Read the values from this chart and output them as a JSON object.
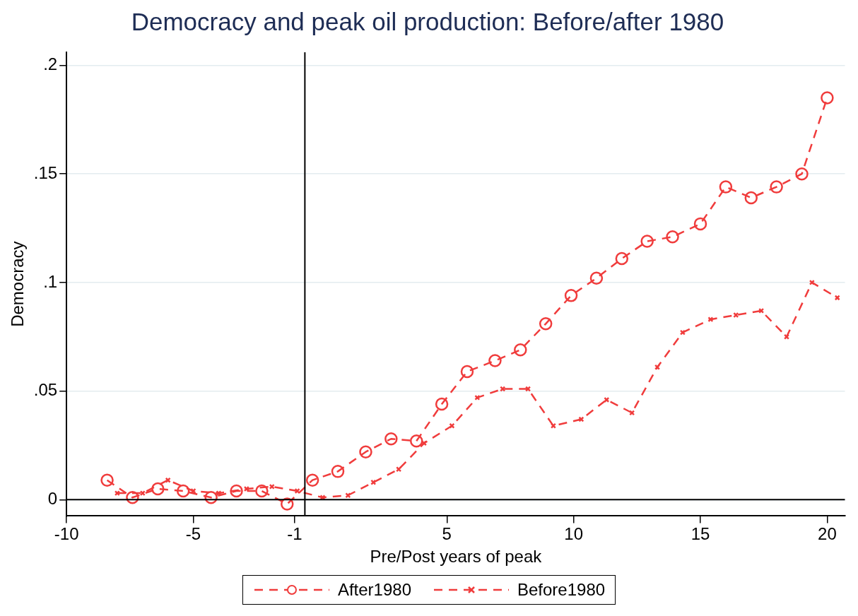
{
  "chart_data": {
    "type": "line",
    "title": "Democracy and peak oil production: Before/after 1980",
    "xlabel": "Pre/Post years of peak",
    "ylabel": "Democracy",
    "xlim": [
      -10,
      20.7
    ],
    "xticks": [
      -10,
      -5,
      -1,
      5,
      10,
      15,
      20
    ],
    "ylim": [
      -0.0075,
      0.206
    ],
    "yticks": [
      {
        "value": 0,
        "label": "0"
      },
      {
        "value": 0.05,
        "label": ".05"
      },
      {
        "value": 0.1,
        "label": ".1"
      },
      {
        "value": 0.15,
        "label": ".15"
      },
      {
        "value": 0.2,
        "label": ".2"
      }
    ],
    "grid": "y",
    "legend": "bottom",
    "line_style": "dashed",
    "ref_lines": [
      {
        "axis": "x",
        "value": -0.6,
        "color": "#000000"
      },
      {
        "axis": "y",
        "value": 0,
        "color": "#000000"
      }
    ],
    "series": [
      {
        "name": "After1980",
        "color": "#f03c3c",
        "marker": "circle",
        "x": [
          -8.4,
          -7.4,
          -6.4,
          -5.4,
          -4.3,
          -3.3,
          -2.3,
          -1.3,
          -0.3,
          0.7,
          1.8,
          2.8,
          3.8,
          4.8,
          5.8,
          6.9,
          7.9,
          8.9,
          9.9,
          10.9,
          11.9,
          12.9,
          13.9,
          15.0,
          16.0,
          17.0,
          18.0,
          19.0,
          20.0
        ],
        "values": [
          0.009,
          0.001,
          0.005,
          0.004,
          0.001,
          0.004,
          0.004,
          -0.002,
          0.009,
          0.013,
          0.022,
          0.028,
          0.027,
          0.044,
          0.059,
          0.064,
          0.069,
          0.081,
          0.094,
          0.102,
          0.111,
          0.119,
          0.121,
          0.127,
          0.144,
          0.139,
          0.144,
          0.15,
          0.185
        ]
      },
      {
        "name": "Before1980",
        "color": "#f03c3c",
        "marker": "cross",
        "x": [
          -8.0,
          -7.0,
          -6.0,
          -5.0,
          -4.0,
          -2.9,
          -1.9,
          -0.9,
          0.1,
          1.1,
          2.1,
          3.1,
          4.1,
          5.2,
          6.2,
          7.2,
          8.2,
          9.2,
          10.3,
          11.3,
          12.3,
          13.3,
          14.3,
          15.4,
          16.4,
          17.4,
          18.4,
          19.4,
          20.4
        ],
        "values": [
          0.003,
          0.003,
          0.009,
          0.004,
          0.003,
          0.005,
          0.006,
          0.004,
          0.001,
          0.002,
          0.008,
          0.014,
          0.026,
          0.034,
          0.047,
          0.051,
          0.051,
          0.034,
          0.037,
          0.046,
          0.04,
          0.061,
          0.077,
          0.083,
          0.085,
          0.087,
          0.075,
          0.1,
          0.093
        ]
      }
    ]
  }
}
